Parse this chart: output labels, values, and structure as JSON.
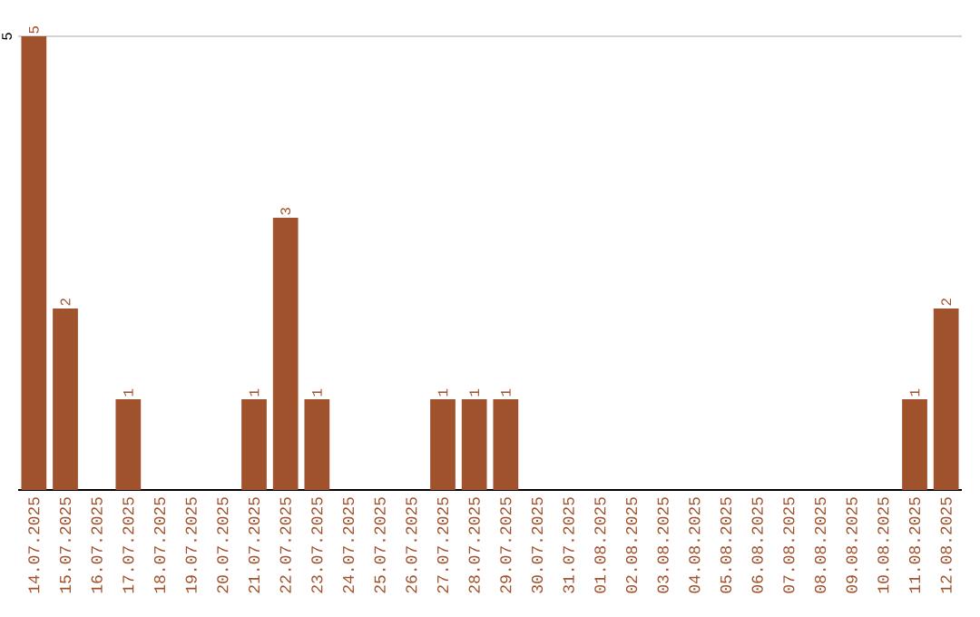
{
  "chart_data": {
    "type": "bar",
    "categories": [
      "14.07.2025",
      "15.07.2025",
      "16.07.2025",
      "17.07.2025",
      "18.07.2025",
      "19.07.2025",
      "20.07.2025",
      "21.07.2025",
      "22.07.2025",
      "23.07.2025",
      "24.07.2025",
      "25.07.2025",
      "26.07.2025",
      "27.07.2025",
      "28.07.2025",
      "29.07.2025",
      "30.07.2025",
      "31.07.2025",
      "01.08.2025",
      "02.08.2025",
      "03.08.2025",
      "04.08.2025",
      "05.08.2025",
      "06.08.2025",
      "07.08.2025",
      "08.08.2025",
      "09.08.2025",
      "10.08.2025",
      "11.08.2025",
      "12.08.2025"
    ],
    "values": [
      5,
      2,
      0,
      1,
      0,
      0,
      0,
      1,
      3,
      1,
      0,
      0,
      0,
      1,
      1,
      1,
      0,
      0,
      0,
      0,
      0,
      0,
      0,
      0,
      0,
      0,
      0,
      0,
      1,
      2
    ],
    "value_labels": [
      "5",
      "2",
      null,
      "1",
      null,
      null,
      null,
      "1",
      "3",
      "1",
      null,
      null,
      null,
      "1",
      "1",
      "1",
      null,
      null,
      null,
      null,
      null,
      null,
      null,
      null,
      null,
      null,
      null,
      null,
      "1",
      "2"
    ],
    "color": "#a0522d",
    "ylim": [
      0,
      5
    ],
    "yticks": [
      {
        "value": 0,
        "label": null
      },
      5
    ],
    "grid": "y"
  }
}
